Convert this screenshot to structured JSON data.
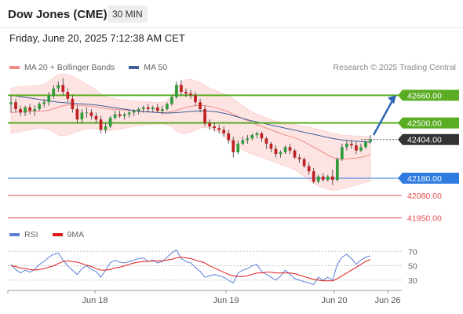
{
  "header": {
    "title": "Dow Jones (CME)",
    "timeframe": "30 MIN",
    "datetime": "Friday, June 20, 2025 7:12:38 AM CET",
    "copyright": "Research © 2025 Trading Central"
  },
  "legend_main": [
    {
      "label": "MA 20 + Bollinger Bands",
      "color": "#f08a84"
    },
    {
      "label": "MA 50",
      "color": "#3d5f98"
    }
  ],
  "legend_rsi": [
    {
      "label": "RSI",
      "color": "#5b7fd6"
    },
    {
      "label": "9MA",
      "color": "#e01a1a"
    }
  ],
  "levels": [
    {
      "value": "42660.00",
      "price": 42660,
      "kind": "resistance",
      "color": "#5aad22"
    },
    {
      "value": "42500.00",
      "price": 42500,
      "kind": "resistance",
      "color": "#5aad22"
    },
    {
      "value": "42404.00",
      "price": 42404,
      "kind": "last",
      "color": "#222222"
    },
    {
      "value": "42180.00",
      "price": 42180,
      "kind": "pivot",
      "color": "#2f7be0"
    },
    {
      "value": "42080.00",
      "price": 42080,
      "kind": "support",
      "color": "#e24a4a"
    },
    {
      "value": "41950.00",
      "price": 41950,
      "kind": "support",
      "color": "#e24a4a"
    }
  ],
  "x_labels": [
    "Jun 18",
    "Jun 19",
    "Jun 20",
    "Jun 26"
  ],
  "rsi_ticks": [
    "70",
    "50",
    "30"
  ],
  "chart_data": [
    {
      "type": "candlestick",
      "title": "Dow Jones (CME)",
      "timeframe": "30 MIN",
      "ylim": [
        41930,
        42780
      ],
      "x_ticks": [
        "Jun 18",
        "Jun 19",
        "Jun 20",
        "Jun 26"
      ],
      "horizontal_levels": [
        42660,
        42500,
        42404,
        42180,
        42080,
        41950
      ],
      "forecast_arrow": {
        "from": 42430,
        "to": 42660
      },
      "candles": [
        [
          42610,
          42660,
          42560,
          42620
        ],
        [
          42620,
          42640,
          42560,
          42580
        ],
        [
          42580,
          42600,
          42540,
          42560
        ],
        [
          42560,
          42600,
          42540,
          42590
        ],
        [
          42590,
          42610,
          42550,
          42570
        ],
        [
          42570,
          42600,
          42540,
          42580
        ],
        [
          42580,
          42620,
          42570,
          42610
        ],
        [
          42610,
          42640,
          42590,
          42620
        ],
        [
          42620,
          42680,
          42600,
          42660
        ],
        [
          42660,
          42720,
          42640,
          42700
        ],
        [
          42700,
          42740,
          42680,
          42720
        ],
        [
          42720,
          42760,
          42660,
          42680
        ],
        [
          42680,
          42700,
          42620,
          42640
        ],
        [
          42640,
          42660,
          42560,
          42580
        ],
        [
          42580,
          42600,
          42500,
          42520
        ],
        [
          42520,
          42580,
          42500,
          42560
        ],
        [
          42560,
          42590,
          42530,
          42560
        ],
        [
          42560,
          42580,
          42520,
          42540
        ],
        [
          42540,
          42560,
          42500,
          42520
        ],
        [
          42520,
          42540,
          42440,
          42460
        ],
        [
          42460,
          42500,
          42440,
          42480
        ],
        [
          42480,
          42540,
          42470,
          42530
        ],
        [
          42530,
          42570,
          42520,
          42550
        ],
        [
          42550,
          42570,
          42530,
          42540
        ],
        [
          42540,
          42560,
          42520,
          42550
        ],
        [
          42550,
          42570,
          42530,
          42560
        ],
        [
          42560,
          42580,
          42540,
          42570
        ],
        [
          42570,
          42590,
          42550,
          42580
        ],
        [
          42580,
          42600,
          42560,
          42590
        ],
        [
          42590,
          42610,
          42560,
          42580
        ],
        [
          42580,
          42600,
          42560,
          42590
        ],
        [
          42590,
          42610,
          42560,
          42570
        ],
        [
          42570,
          42600,
          42550,
          42580
        ],
        [
          42580,
          42620,
          42570,
          42610
        ],
        [
          42610,
          42660,
          42600,
          42650
        ],
        [
          42650,
          42740,
          42640,
          42720
        ],
        [
          42720,
          42750,
          42660,
          42680
        ],
        [
          42680,
          42700,
          42650,
          42670
        ],
        [
          42670,
          42690,
          42640,
          42660
        ],
        [
          42660,
          42680,
          42600,
          42620
        ],
        [
          42620,
          42640,
          42560,
          42580
        ],
        [
          42580,
          42600,
          42480,
          42500
        ],
        [
          42500,
          42520,
          42460,
          42480
        ],
        [
          42480,
          42500,
          42450,
          42470
        ],
        [
          42470,
          42490,
          42440,
          42460
        ],
        [
          42460,
          42480,
          42420,
          42440
        ],
        [
          42440,
          42460,
          42380,
          42400
        ],
        [
          42400,
          42420,
          42300,
          42330
        ],
        [
          42330,
          42400,
          42320,
          42380
        ],
        [
          42380,
          42420,
          42370,
          42400
        ],
        [
          42400,
          42430,
          42380,
          42410
        ],
        [
          42410,
          42440,
          42400,
          42430
        ],
        [
          42430,
          42450,
          42410,
          42440
        ],
        [
          42440,
          42450,
          42390,
          42410
        ],
        [
          42410,
          42420,
          42350,
          42380
        ],
        [
          42380,
          42390,
          42330,
          42350
        ],
        [
          42350,
          42370,
          42300,
          42320
        ],
        [
          42320,
          42340,
          42300,
          42330
        ],
        [
          42330,
          42370,
          42320,
          42360
        ],
        [
          42360,
          42380,
          42320,
          42340
        ],
        [
          42340,
          42350,
          42290,
          42300
        ],
        [
          42300,
          42320,
          42270,
          42290
        ],
        [
          42290,
          42300,
          42240,
          42250
        ],
        [
          42250,
          42270,
          42200,
          42220
        ],
        [
          42220,
          42240,
          42150,
          42160
        ],
        [
          42160,
          42200,
          42150,
          42190
        ],
        [
          42190,
          42210,
          42160,
          42170
        ],
        [
          42170,
          42200,
          42160,
          42190
        ],
        [
          42190,
          42230,
          42140,
          42170
        ],
        [
          42170,
          42300,
          42160,
          42290
        ],
        [
          42290,
          42380,
          42280,
          42360
        ],
        [
          42360,
          42400,
          42340,
          42380
        ],
        [
          42380,
          42400,
          42350,
          42370
        ],
        [
          42370,
          42390,
          42320,
          42340
        ],
        [
          42340,
          42380,
          42330,
          42360
        ],
        [
          42360,
          42400,
          42350,
          42390
        ],
        [
          42390,
          42430,
          42380,
          42404
        ]
      ],
      "series": [
        {
          "name": "MA 20",
          "values": [
            42560,
            42562,
            42565,
            42566,
            42567,
            42568,
            42569,
            42570,
            42574,
            42582,
            42592,
            42600,
            42604,
            42605,
            42603,
            42600,
            42598,
            42596,
            42593,
            42588,
            42583,
            42580,
            42578,
            42577,
            42575,
            42573,
            42571,
            42569,
            42567,
            42565,
            42563,
            42561,
            42560,
            42561,
            42565,
            42573,
            42582,
            42590,
            42596,
            42600,
            42602,
            42600,
            42596,
            42590,
            42583,
            42574,
            42564,
            42550,
            42537,
            42525,
            42513,
            42502,
            42491,
            42480,
            42470,
            42460,
            42450,
            42440,
            42430,
            42422,
            42413,
            42403,
            42390,
            42375,
            42360,
            42345,
            42330,
            42314,
            42300,
            42292,
            42290,
            42291,
            42294,
            42297,
            42302,
            42308,
            42316
          ]
        },
        {
          "name": "MA 50",
          "values": [
            42660,
            42656,
            42652,
            42648,
            42644,
            42640,
            42636,
            42632,
            42628,
            42624,
            42620,
            42618,
            42616,
            42614,
            42612,
            42610,
            42608,
            42606,
            42604,
            42600,
            42596,
            42592,
            42588,
            42584,
            42580,
            42576,
            42572,
            42568,
            42566,
            42564,
            42562,
            42560,
            42558,
            42557,
            42558,
            42560,
            42562,
            42564,
            42566,
            42568,
            42570,
            42570,
            42568,
            42566,
            42562,
            42556,
            42550,
            42542,
            42534,
            42526,
            42518,
            42512,
            42506,
            42500,
            42494,
            42488,
            42482,
            42476,
            42470,
            42464,
            42458,
            42452,
            42446,
            42440,
            42434,
            42428,
            42422,
            42416,
            42410,
            42406,
            42402,
            42398,
            42396,
            42394,
            42392,
            42390,
            42388
          ]
        },
        {
          "name": "Bollinger Upper",
          "values": [
            42700,
            42705,
            42710,
            42712,
            42714,
            42716,
            42718,
            42722,
            42740,
            42762,
            42780,
            42785,
            42778,
            42770,
            42755,
            42740,
            42725,
            42708,
            42690,
            42670,
            42655,
            42645,
            42640,
            42635,
            42632,
            42630,
            42628,
            42626,
            42625,
            42622,
            42620,
            42618,
            42620,
            42630,
            42655,
            42700,
            42735,
            42750,
            42752,
            42745,
            42735,
            42720,
            42700,
            42690,
            42680,
            42670,
            42655,
            42640,
            42620,
            42600,
            42580,
            42565,
            42550,
            42540,
            42530,
            42520,
            42510,
            42505,
            42500,
            42495,
            42490,
            42485,
            42480,
            42475,
            42470,
            42462,
            42455,
            42448,
            42440,
            42435,
            42430,
            42428,
            42426,
            42424,
            42422,
            42420,
            42420
          ]
        },
        {
          "name": "Bollinger Lower",
          "values": [
            42440,
            42445,
            42450,
            42455,
            42460,
            42465,
            42470,
            42470,
            42460,
            42445,
            42430,
            42425,
            42430,
            42440,
            42450,
            42460,
            42465,
            42468,
            42466,
            42460,
            42455,
            42456,
            42460,
            42465,
            42470,
            42475,
            42480,
            42484,
            42488,
            42490,
            42492,
            42494,
            42494,
            42490,
            42478,
            42455,
            42440,
            42440,
            42446,
            42458,
            42470,
            42474,
            42470,
            42460,
            42445,
            42425,
            42400,
            42380,
            42360,
            42345,
            42330,
            42320,
            42310,
            42300,
            42290,
            42280,
            42270,
            42260,
            42250,
            42240,
            42230,
            42210,
            42190,
            42170,
            42150,
            42135,
            42125,
            42115,
            42110,
            42112,
            42118,
            42125,
            42133,
            42140,
            42148,
            42156,
            42165
          ]
        }
      ]
    },
    {
      "type": "line",
      "title": "RSI",
      "ylim": [
        20,
        78
      ],
      "y_ticks": [
        70,
        50,
        30
      ],
      "series": [
        {
          "name": "RSI",
          "values": [
            52,
            45,
            40,
            44,
            41,
            45,
            52,
            56,
            62,
            66,
            68,
            58,
            50,
            44,
            38,
            46,
            50,
            45,
            42,
            34,
            44,
            54,
            58,
            55,
            54,
            56,
            58,
            60,
            61,
            56,
            58,
            54,
            56,
            62,
            68,
            72,
            60,
            56,
            54,
            48,
            42,
            34,
            36,
            38,
            36,
            34,
            30,
            26,
            40,
            44,
            46,
            50,
            52,
            42,
            38,
            34,
            30,
            36,
            44,
            38,
            32,
            30,
            28,
            26,
            24,
            34,
            30,
            34,
            30,
            52,
            62,
            66,
            60,
            52,
            58,
            62,
            64
          ]
        },
        {
          "name": "9MA",
          "values": [
            50,
            49,
            47,
            46,
            45,
            44,
            45,
            46,
            48,
            50,
            53,
            56,
            57,
            56,
            55,
            53,
            51,
            49,
            46,
            44,
            44,
            45,
            47,
            48,
            50,
            52,
            54,
            55,
            56,
            56,
            57,
            57,
            57,
            58,
            59,
            61,
            62,
            61,
            60,
            58,
            56,
            54,
            50,
            47,
            44,
            41,
            38,
            36,
            35,
            35,
            36,
            38,
            40,
            40,
            41,
            41,
            40,
            40,
            40,
            40,
            39,
            37,
            35,
            33,
            31,
            30,
            29,
            29,
            29,
            32,
            36,
            40,
            44,
            48,
            52,
            56,
            59
          ]
        }
      ]
    }
  ]
}
